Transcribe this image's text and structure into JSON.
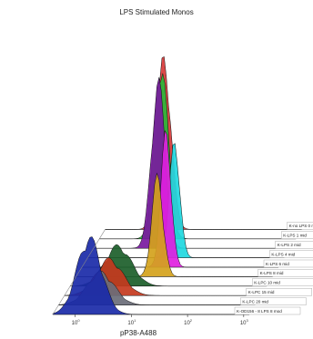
{
  "chart_data": {
    "type": "area",
    "title": "LPS Stimulated Monos",
    "xlabel": "pP38-A488",
    "ylabel": "",
    "x_scale": "log",
    "x_tick_exponents": [
      0,
      1,
      2,
      3
    ],
    "x_tick_base": "10",
    "legend_placement": "right (lane labels)",
    "series": [
      {
        "name": "K-OD156 - 8 LPS 8 mod",
        "color": "#1a2aa8",
        "peak_log": 0.25,
        "width": 0.22,
        "height": 0.42
      },
      {
        "name": "K-LPC 20 mid",
        "color": "#6a6d78",
        "peak_log": 0.35,
        "width": 0.24,
        "height": 0.18
      },
      {
        "name": "K-LPC 15 mid",
        "color": "#c43a1e",
        "peak_log": 0.4,
        "width": 0.24,
        "height": 0.2
      },
      {
        "name": "K-LPC 10 mid",
        "color": "#1c5e2a",
        "peak_log": 0.45,
        "width": 0.24,
        "height": 0.22
      },
      {
        "name": "K-LPS 8 mid",
        "color": "#d4a21c",
        "peak_log": 1.05,
        "width": 0.1,
        "height": 0.55
      },
      {
        "name": "K-LPS 6 mid",
        "color": "#e020e0",
        "peak_log": 1.1,
        "width": 0.09,
        "height": 0.75
      },
      {
        "name": "K-LPS 4 mid",
        "color": "#20d8e0",
        "peak_log": 1.15,
        "width": 0.09,
        "height": 0.65
      },
      {
        "name": "K-LPS 2 mid",
        "color": "#7a1aa0",
        "peak_log": 0.75,
        "width": 0.12,
        "height": 0.92
      },
      {
        "name": "K-LPS 1 mid",
        "color": "#2ab83a",
        "peak_log": 0.7,
        "width": 0.12,
        "height": 1.0
      },
      {
        "name": "K-no LPS 0 mid",
        "color": "#d83a3a",
        "peak_log": 0.65,
        "width": 0.12,
        "height": 0.96
      }
    ]
  }
}
